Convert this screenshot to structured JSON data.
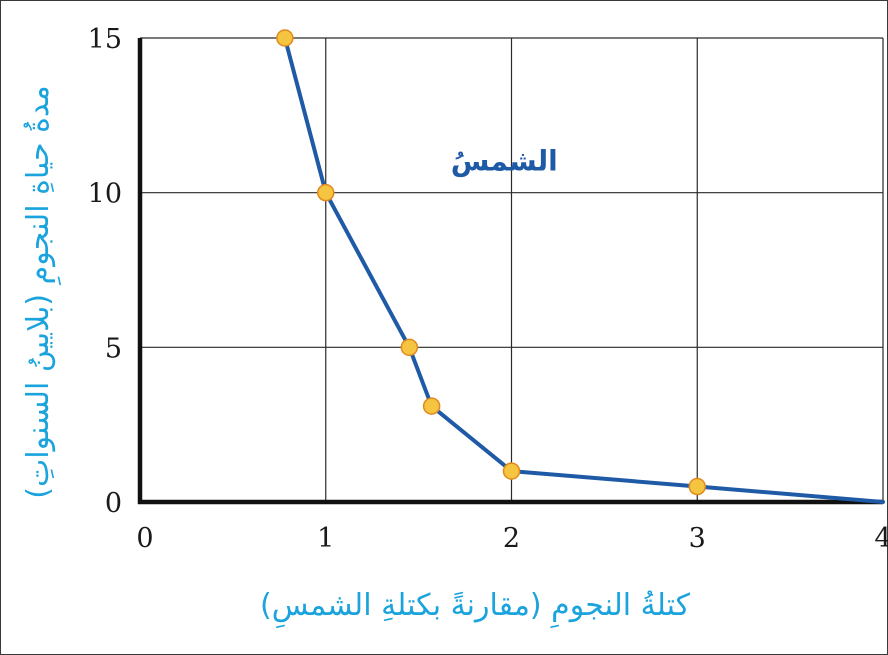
{
  "chart_data": {
    "type": "line",
    "xlabel": "كتلةُ النجومِ (مقارنةً بكتلةِ الشمسِ)",
    "ylabel": "مدةُ حياةِ النجومِ (بلايينُ السنواتِ)",
    "xlim": [
      0,
      4
    ],
    "ylim": [
      0,
      15
    ],
    "x_ticks": [
      "0",
      "1",
      "2",
      "3",
      "4"
    ],
    "y_ticks": [
      "0",
      "5",
      "10",
      "15"
    ],
    "grid": true,
    "series": [
      {
        "color": "#1f5aa6",
        "marker_color": "#f5c542",
        "points": [
          {
            "x": 0.78,
            "y": 15
          },
          {
            "x": 1.0,
            "y": 10
          },
          {
            "x": 1.45,
            "y": 5
          },
          {
            "x": 1.57,
            "y": 3.1
          },
          {
            "x": 2.0,
            "y": 1.0
          },
          {
            "x": 3.0,
            "y": 0.5
          },
          {
            "x": 4.0,
            "y": 0
          }
        ],
        "markers": [
          0,
          1,
          2,
          3,
          4,
          5
        ]
      }
    ],
    "annotations": [
      {
        "text": "الشمسُ",
        "x": 1.0,
        "y": 10
      }
    ]
  }
}
